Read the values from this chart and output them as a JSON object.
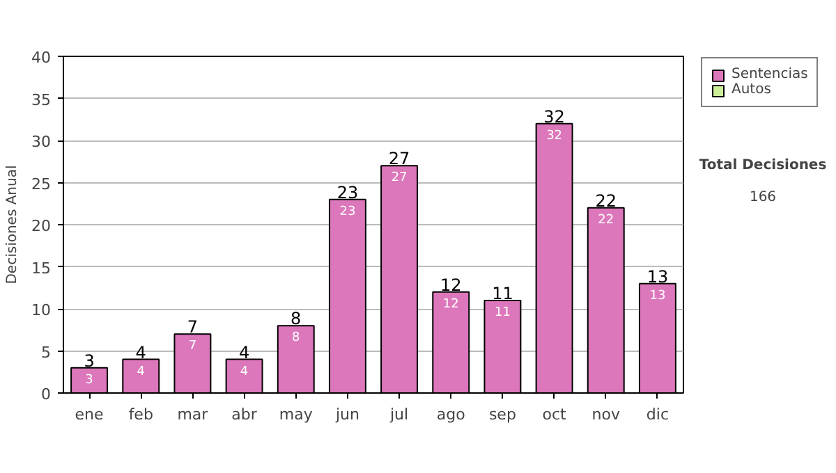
{
  "chart_data": {
    "type": "bar",
    "stacked": true,
    "ylabel": "Decisiones Anual",
    "categories": [
      "ene",
      "feb",
      "mar",
      "abr",
      "may",
      "jun",
      "jul",
      "ago",
      "sep",
      "oct",
      "nov",
      "dic"
    ],
    "series": [
      {
        "name": "Sentencias",
        "color": "#dd77bb",
        "values": [
          3,
          4,
          7,
          4,
          8,
          23,
          27,
          12,
          11,
          32,
          22,
          13
        ]
      },
      {
        "name": "Autos",
        "color": "#ccee99",
        "values": [
          null,
          null,
          null,
          null,
          null,
          null,
          null,
          null,
          null,
          null,
          null,
          null
        ]
      }
    ],
    "totals": [
      "3",
      "4",
      "7",
      "4",
      "8",
      "23",
      "27",
      "12",
      "11",
      "32",
      "22",
      "13"
    ],
    "data_labels": true,
    "ylim": [
      0,
      40
    ],
    "yticks": [
      0,
      5,
      10,
      15,
      20,
      25,
      30,
      35,
      40
    ],
    "grid": "y",
    "legend": "right",
    "annotations": [
      "Total Decisiones",
      "166"
    ]
  }
}
